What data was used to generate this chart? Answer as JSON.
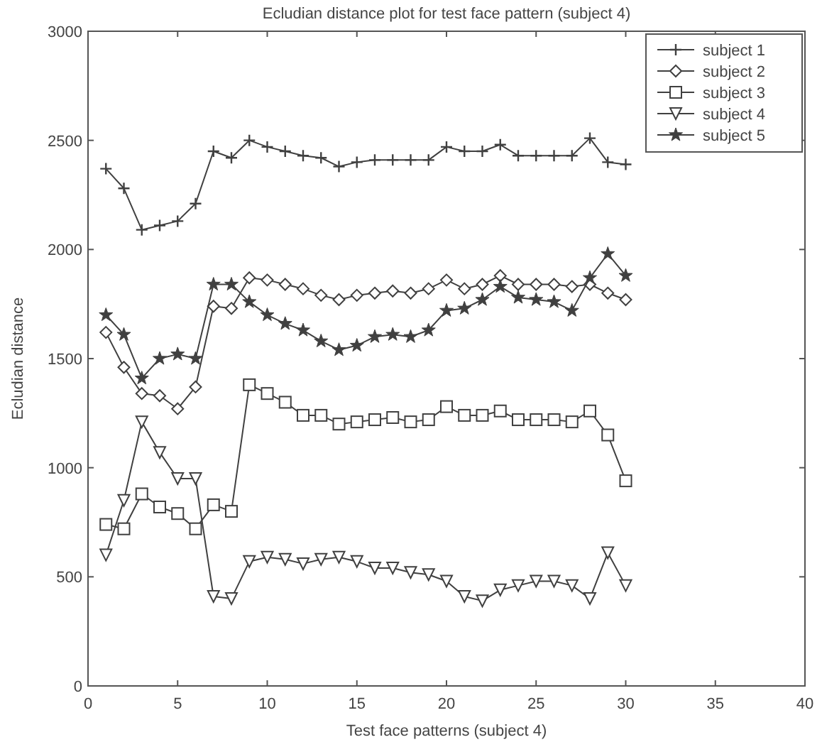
{
  "chart_data": {
    "type": "line",
    "title": "Ecludian distance plot for test face pattern (subject 4)",
    "xlabel": "Test face patterns (subject 4)",
    "ylabel": "Ecludian distance",
    "x": [
      1,
      2,
      3,
      4,
      5,
      6,
      7,
      8,
      9,
      10,
      11,
      12,
      13,
      14,
      15,
      16,
      17,
      18,
      19,
      20,
      21,
      22,
      23,
      24,
      25,
      26,
      27,
      28,
      29,
      30
    ],
    "xlim": [
      0,
      40
    ],
    "xticks": [
      0,
      5,
      10,
      15,
      20,
      25,
      30,
      35,
      40
    ],
    "ylim": [
      0,
      3000
    ],
    "yticks": [
      0,
      500,
      1000,
      1500,
      2000,
      2500,
      3000
    ],
    "grid": false,
    "legend": "top right",
    "line_style": "solid",
    "series": [
      {
        "name": "subject 1",
        "color": "#404040",
        "marker": "cross",
        "values": [
          2370,
          2280,
          2090,
          2110,
          2130,
          2210,
          2450,
          2420,
          2500,
          2470,
          2450,
          2430,
          2420,
          2380,
          2400,
          2410,
          2410,
          2410,
          2410,
          2470,
          2450,
          2450,
          2480,
          2430,
          2430,
          2430,
          2430,
          2510,
          2400,
          2390
        ]
      },
      {
        "name": "subject 2",
        "color": "#404040",
        "marker": "diamond",
        "values": [
          1620,
          1460,
          1340,
          1330,
          1270,
          1370,
          1740,
          1730,
          1870,
          1860,
          1840,
          1820,
          1790,
          1770,
          1790,
          1800,
          1810,
          1800,
          1820,
          1860,
          1820,
          1840,
          1880,
          1840,
          1840,
          1840,
          1830,
          1840,
          1800,
          1770
        ]
      },
      {
        "name": "subject 3",
        "color": "#404040",
        "marker": "square",
        "values": [
          740,
          720,
          880,
          820,
          790,
          720,
          830,
          800,
          1380,
          1340,
          1300,
          1240,
          1240,
          1200,
          1210,
          1220,
          1230,
          1210,
          1220,
          1280,
          1240,
          1240,
          1260,
          1220,
          1220,
          1220,
          1210,
          1260,
          1150,
          940
        ]
      },
      {
        "name": "subject 4",
        "color": "#404040",
        "marker": "triangle",
        "values": [
          600,
          850,
          1210,
          1070,
          950,
          950,
          410,
          400,
          570,
          590,
          580,
          560,
          580,
          590,
          570,
          540,
          540,
          520,
          510,
          480,
          410,
          390,
          440,
          460,
          480,
          480,
          460,
          400,
          610,
          460
        ]
      },
      {
        "name": "subject 5",
        "color": "#404040",
        "marker": "star",
        "values": [
          1700,
          1610,
          1410,
          1500,
          1520,
          1500,
          1840,
          1840,
          1760,
          1700,
          1660,
          1630,
          1580,
          1540,
          1560,
          1600,
          1610,
          1600,
          1630,
          1720,
          1730,
          1770,
          1830,
          1780,
          1770,
          1760,
          1720,
          1870,
          1980,
          1880
        ]
      }
    ]
  }
}
